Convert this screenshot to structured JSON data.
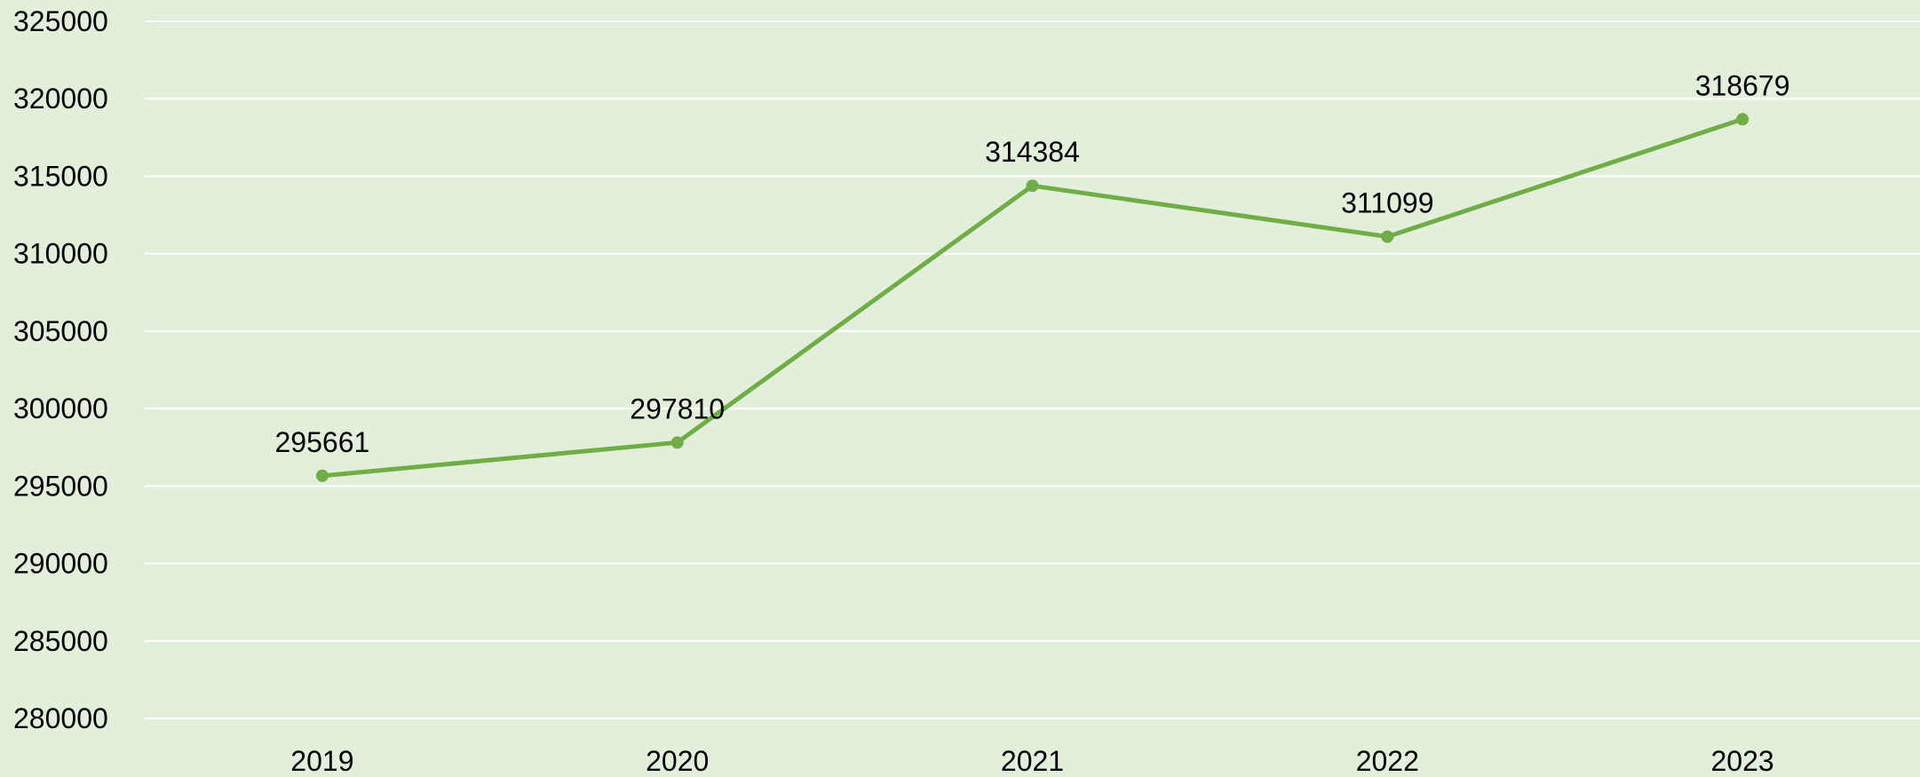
{
  "chart_data": {
    "type": "line",
    "title": "",
    "xlabel": "",
    "ylabel": "",
    "categories": [
      "2019",
      "2020",
      "2021",
      "2022",
      "2023"
    ],
    "series": [
      {
        "values": [
          295661,
          297810,
          314384,
          311099,
          318679
        ]
      }
    ],
    "ylim": [
      280000,
      325000
    ],
    "y_ticks": [
      "280000",
      "285000",
      "290000",
      "295000",
      "300000",
      "305000",
      "310000",
      "315000",
      "320000",
      "325000"
    ],
    "data_labels": [
      "295661",
      "297810",
      "314384",
      "311099",
      "318679"
    ],
    "grid": true,
    "legend": "none",
    "colors": {
      "background": "#e2efda",
      "line": "#70ad47",
      "grid": "#ffffff",
      "text": "#000000"
    }
  }
}
